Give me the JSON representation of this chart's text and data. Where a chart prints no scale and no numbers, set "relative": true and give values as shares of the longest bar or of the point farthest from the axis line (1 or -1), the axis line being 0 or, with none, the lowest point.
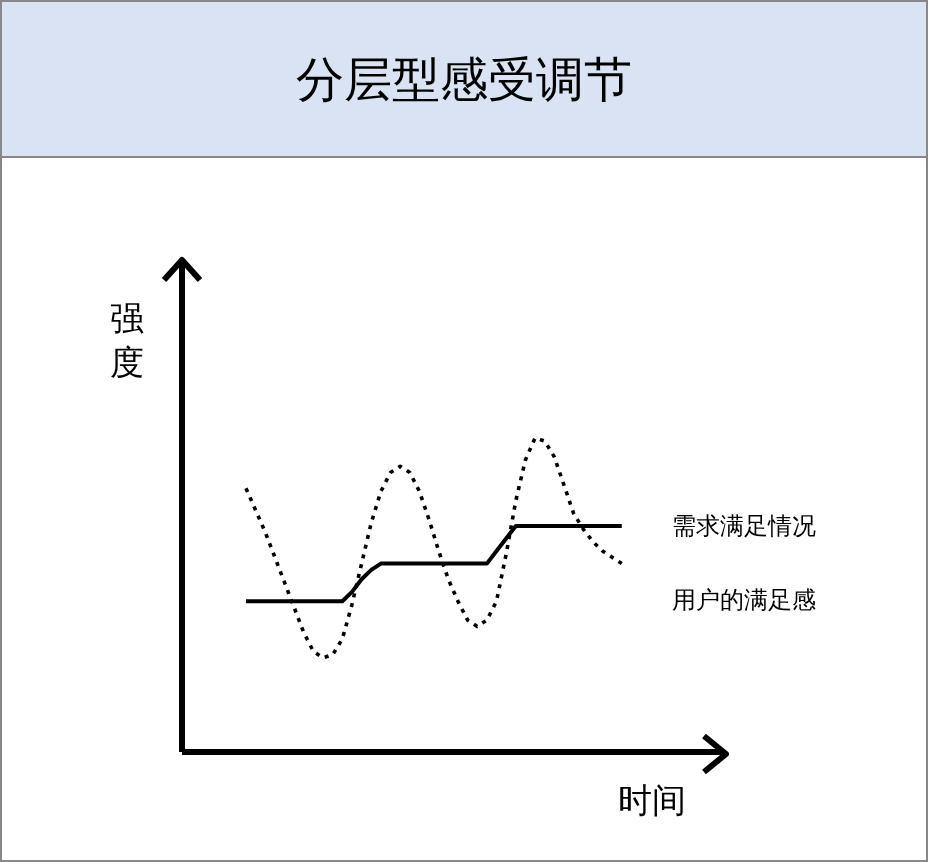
{
  "chart_data": {
    "type": "line",
    "title": "分层型感受调节",
    "xlabel": "时间",
    "ylabel": "强度",
    "relative": true,
    "grid": false,
    "legend": false,
    "marker": "none",
    "categories": [
      null,
      null,
      null,
      null,
      null,
      null,
      null,
      null,
      null,
      null,
      null,
      null,
      null,
      null,
      null,
      null,
      null,
      null,
      null,
      null,
      null,
      null,
      null,
      null,
      null,
      null,
      null,
      null,
      null,
      null,
      null,
      null,
      null,
      null,
      null,
      null,
      null,
      null,
      null,
      null
    ],
    "series": [
      {
        "name": "需求满足情况",
        "color": "#000000",
        "line_style": "solid",
        "values": [
          0.48,
          0.48,
          0.48,
          0.48,
          0.48,
          0.48,
          0.48,
          0.48,
          0.48,
          0.48,
          0.48,
          0.51,
          0.55,
          0.58,
          0.6,
          0.6,
          0.6,
          0.6,
          0.6,
          0.6,
          0.6,
          0.6,
          0.6,
          0.6,
          0.6,
          0.6,
          0.64,
          0.68,
          0.72,
          0.72,
          0.72,
          0.72,
          0.72,
          0.72,
          0.72,
          0.72,
          0.72,
          0.72,
          0.72,
          0.72
        ]
      },
      {
        "name": "用户的满足感",
        "color": "#000000",
        "line_style": "dotted",
        "values": [
          0.84,
          0.77,
          0.7,
          0.62,
          0.54,
          0.46,
          0.38,
          0.32,
          0.3,
          0.31,
          0.36,
          0.47,
          0.6,
          0.73,
          0.83,
          0.89,
          0.91,
          0.89,
          0.83,
          0.74,
          0.64,
          0.55,
          0.48,
          0.42,
          0.4,
          0.42,
          0.48,
          0.63,
          0.8,
          0.93,
          1,
          0.99,
          0.94,
          0.85,
          0.76,
          0.71,
          0.67,
          0.64,
          0.62,
          0.6
        ]
      }
    ]
  }
}
